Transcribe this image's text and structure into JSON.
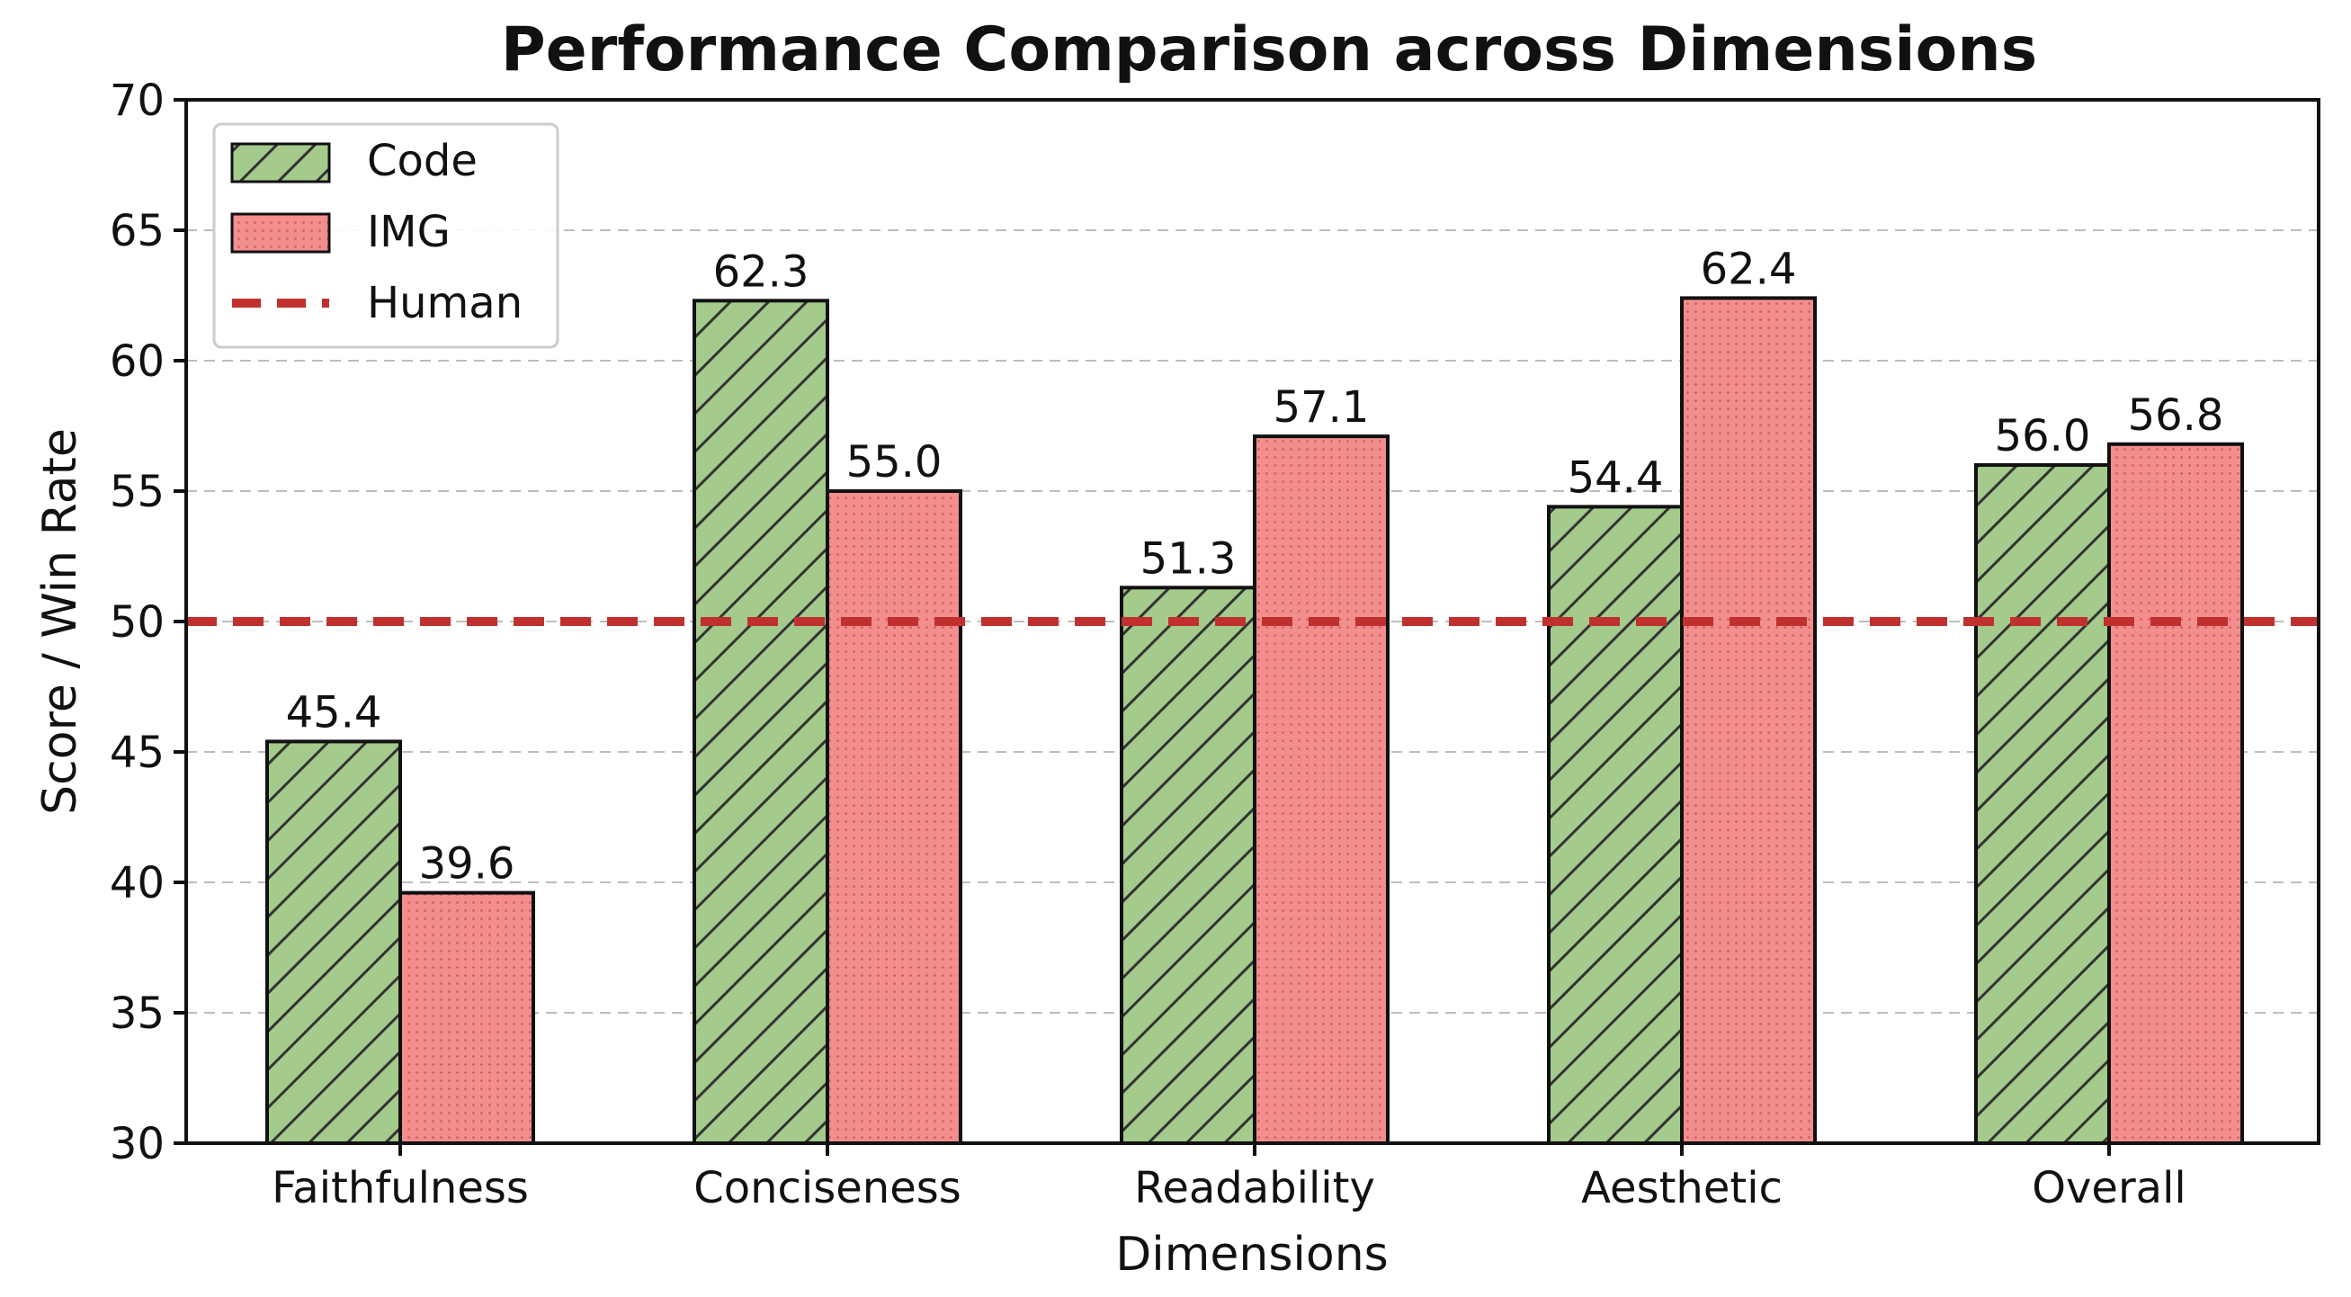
{
  "chart_data": {
    "type": "bar",
    "title": "Performance Comparison across Dimensions",
    "xlabel": "Dimensions",
    "ylabel": "Score / Win Rate",
    "ylim": [
      30,
      70
    ],
    "yticks": [
      30,
      35,
      40,
      45,
      50,
      55,
      60,
      65,
      70
    ],
    "categories": [
      "Faithfulness",
      "Conciseness",
      "Readability",
      "Aesthetic",
      "Overall"
    ],
    "series": [
      {
        "name": "Code",
        "values": [
          45.4,
          62.3,
          51.3,
          54.4,
          56.0
        ],
        "color": "#a4ca8c",
        "pattern": "hatch"
      },
      {
        "name": "IMG",
        "values": [
          39.6,
          55.0,
          57.1,
          62.4,
          56.8
        ],
        "color": "#f28e8e",
        "pattern": "dots"
      }
    ],
    "reference_line": {
      "name": "Human",
      "value": 50,
      "color": "#c0302e",
      "style": "dashed"
    },
    "grid": "horizontal dashed",
    "legend_position": "top-left"
  }
}
